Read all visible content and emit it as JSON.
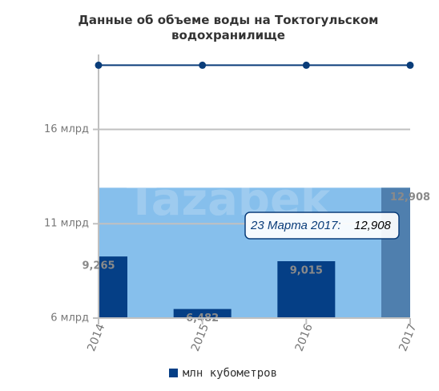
{
  "chart_data": {
    "type": "bar",
    "title": "Данные об объеме воды на Токтогульском водохранилище",
    "watermark": "Tazabek",
    "categories": [
      "2014",
      "2015",
      "2016",
      "2017"
    ],
    "series": [
      {
        "name": "млн кубометров",
        "type": "bar",
        "color": "#053f86",
        "colors": [
          "#053f86",
          "#053f86",
          "#053f86",
          "#4f7fae"
        ],
        "values": [
          9265,
          6482,
          9015,
          12908
        ],
        "value_labels": [
          "9,265",
          "6,482",
          "9,015",
          "12,908"
        ]
      },
      {
        "type": "line",
        "color": "#0a3d7a",
        "values": [
          19400,
          19400,
          19400,
          19400
        ]
      },
      {
        "type": "line",
        "color": "#d9262b",
        "values": [
          6000,
          6000,
          6000,
          6000
        ]
      }
    ],
    "ylim": [
      6000,
      19800
    ],
    "yticks": [
      {
        "value": 6000,
        "label": "6 млрд"
      },
      {
        "value": 11000,
        "label": "11 млрд"
      },
      {
        "value": 16000,
        "label": "16 млрд"
      }
    ],
    "grid": true,
    "highlight_color": "#86bfec",
    "tooltip": {
      "label": "23 Марта 2017:",
      "value": "12,908"
    }
  }
}
